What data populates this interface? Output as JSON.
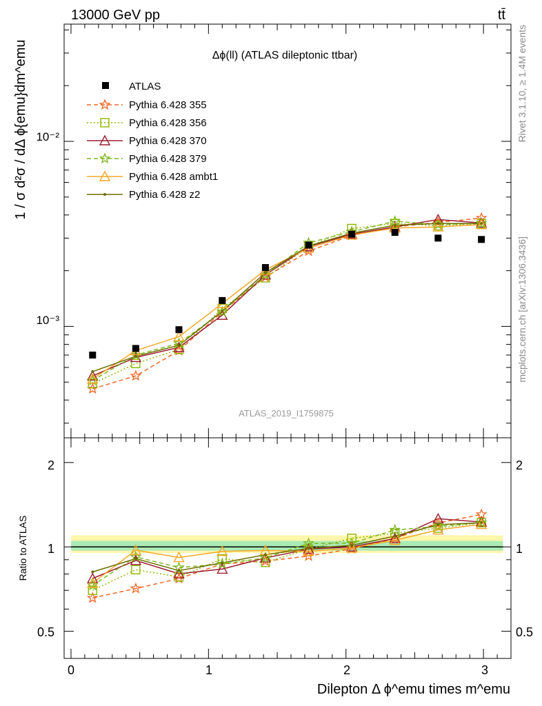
{
  "header": {
    "energy": "13000 GeV pp",
    "process": "tt̄"
  },
  "side_text": {
    "rivet": "Rivet 3.1.10, ≥ 1.4M events",
    "mcplots": "mcplots.cern.ch [arXiv:1306.3436]"
  },
  "chart_data": {
    "type": "line",
    "title": "Δϕ(ll) (ATLAS dileptonic ttbar)",
    "analysis_id": "ATLAS_2019_I1759875",
    "xlabel": "Dilepton Δ ϕ^emu times m^emu",
    "ylabel": "1 / σ  d²σ / dΔ ϕ{emu}dm^emu",
    "ratio_ylabel": "Ratio to ATLAS",
    "xlim": [
      -0.05,
      3.2
    ],
    "ylim": [
      0.00025,
      0.043
    ],
    "yscale": "log",
    "ratio_ylim": [
      0.4,
      2.45
    ],
    "ratio_yscale": "log",
    "x_ticks": [
      "0",
      "1",
      "2",
      "3"
    ],
    "y_ticks": [
      "10⁻³",
      "10⁻²"
    ],
    "ratio_ticks": [
      "0.5",
      "1",
      "2"
    ],
    "x": [
      0.157,
      0.471,
      0.785,
      1.1,
      1.414,
      1.728,
      2.042,
      2.356,
      2.67,
      2.985
    ],
    "data": {
      "name": "ATLAS",
      "values": [
        0.0007,
        0.00076,
        0.00096,
        0.00138,
        0.00208,
        0.00275,
        0.00315,
        0.00322,
        0.003,
        0.00295
      ]
    },
    "series": [
      {
        "name": "Pythia 6.428 355",
        "color": "#f26522",
        "dash": "6,4",
        "marker": "star",
        "values": [
          0.00046,
          0.00054,
          0.00074,
          0.0012,
          0.00185,
          0.00255,
          0.0031,
          0.00345,
          0.00365,
          0.00385
        ]
      },
      {
        "name": "Pythia 6.428 356",
        "color": "#8db600",
        "dash": "2,3",
        "marker": "open-square",
        "values": [
          0.00049,
          0.00063,
          0.00075,
          0.00125,
          0.00183,
          0.0027,
          0.00338,
          0.0036,
          0.0035,
          0.0036
        ]
      },
      {
        "name": "Pythia 6.428 370",
        "color": "#9b1c31",
        "dash": "",
        "marker": "open-triangle",
        "values": [
          0.00054,
          0.00068,
          0.00077,
          0.00115,
          0.0019,
          0.0027,
          0.00315,
          0.00345,
          0.00378,
          0.00362
        ]
      },
      {
        "name": "Pythia 6.428 379",
        "color": "#7cb518",
        "dash": "6,4",
        "marker": "star",
        "values": [
          0.00051,
          0.0007,
          0.00081,
          0.0012,
          0.0019,
          0.00283,
          0.00325,
          0.0037,
          0.00355,
          0.0036
        ]
      },
      {
        "name": "Pythia 6.428 ambt1",
        "color": "#f5a623",
        "dash": "",
        "marker": "open-triangle",
        "values": [
          0.00052,
          0.00074,
          0.00088,
          0.00133,
          0.00202,
          0.00265,
          0.00312,
          0.0034,
          0.00345,
          0.00355
        ]
      },
      {
        "name": "Pythia 6.428 z2",
        "color": "#6b6b00",
        "dash": "",
        "marker": "dot",
        "values": [
          0.00057,
          0.00069,
          0.00079,
          0.00121,
          0.00195,
          0.00272,
          0.00319,
          0.00352,
          0.0036,
          0.0036
        ]
      }
    ]
  }
}
